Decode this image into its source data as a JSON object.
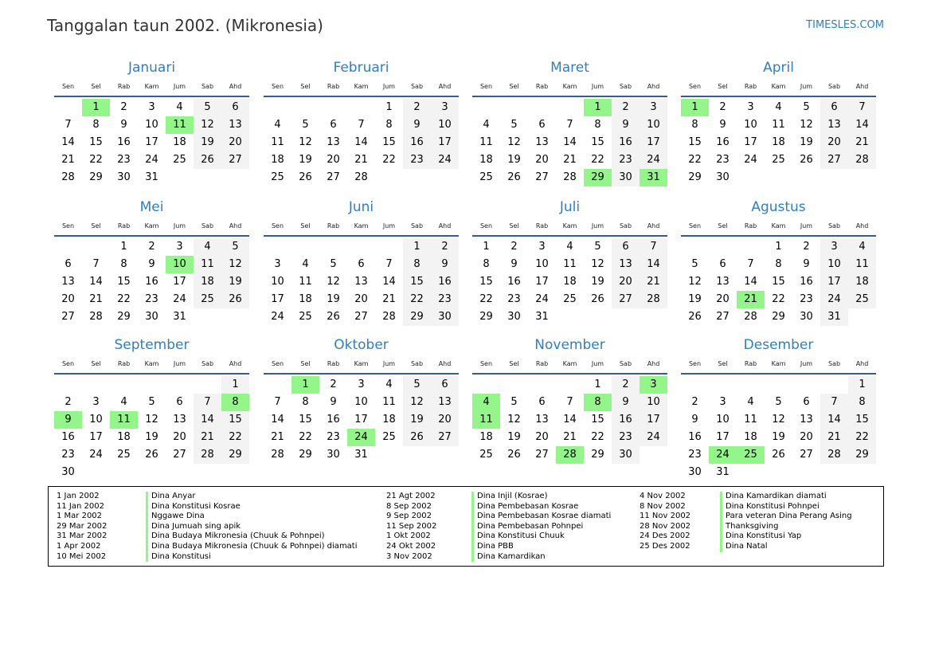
{
  "header": {
    "title": "Tanggalan taun 2002. (Mikronesia)",
    "brand": "TIMESLES.COM"
  },
  "weekdays": [
    "Sen",
    "Sel",
    "Rab",
    "Kam",
    "Jum",
    "Sab",
    "Ahd"
  ],
  "colors": {
    "accent": "#2f7fc1",
    "holiday": "#94f58b",
    "weekend": "#f3f3f3",
    "rule": "#3a5a8a"
  },
  "months": [
    {
      "name": "Januari",
      "first_weekday": 1,
      "days": 31,
      "holidays": [
        1,
        11
      ]
    },
    {
      "name": "Februari",
      "first_weekday": 4,
      "days": 28,
      "holidays": []
    },
    {
      "name": "Maret",
      "first_weekday": 4,
      "days": 31,
      "holidays": [
        1,
        29,
        31
      ]
    },
    {
      "name": "April",
      "first_weekday": 0,
      "days": 30,
      "holidays": [
        1
      ]
    },
    {
      "name": "Mei",
      "first_weekday": 2,
      "days": 31,
      "holidays": [
        10
      ]
    },
    {
      "name": "Juni",
      "first_weekday": 5,
      "days": 30,
      "holidays": []
    },
    {
      "name": "Juli",
      "first_weekday": 0,
      "days": 31,
      "holidays": []
    },
    {
      "name": "Agustus",
      "first_weekday": 3,
      "days": 31,
      "holidays": [
        21
      ]
    },
    {
      "name": "September",
      "first_weekday": 6,
      "days": 30,
      "holidays": [
        8,
        9,
        11
      ]
    },
    {
      "name": "Oktober",
      "first_weekday": 1,
      "days": 31,
      "holidays": [
        1,
        24
      ]
    },
    {
      "name": "November",
      "first_weekday": 4,
      "days": 30,
      "holidays": [
        3,
        4,
        8,
        11,
        28
      ]
    },
    {
      "name": "Desember",
      "first_weekday": 6,
      "days": 31,
      "holidays": [
        24,
        25
      ]
    }
  ],
  "holidays": [
    {
      "date": "1 Jan 2002",
      "name": "Dina Anyar"
    },
    {
      "date": "11 Jan 2002",
      "name": "Dina Konstitusi Kosrae"
    },
    {
      "date": "1 Mar 2002",
      "name": "Nggawe Dina"
    },
    {
      "date": "29 Mar 2002",
      "name": "Dina Jumuah sing apik"
    },
    {
      "date": "31 Mar 2002",
      "name": "Dina Budaya Mikronesia (Chuuk & Pohnpei)"
    },
    {
      "date": "1 Apr 2002",
      "name": "Dina Budaya Mikronesia (Chuuk & Pohnpei) diamati"
    },
    {
      "date": "10 Mei 2002",
      "name": "Dina Konstitusi"
    },
    {
      "date": "21 Agt 2002",
      "name": "Dina Injil (Kosrae)"
    },
    {
      "date": "8 Sep 2002",
      "name": "Dina Pembebasan Kosrae"
    },
    {
      "date": "9 Sep 2002",
      "name": "Dina Pembebasan Kosrae diamati"
    },
    {
      "date": "11 Sep 2002",
      "name": "Dina Pembebasan Pohnpei"
    },
    {
      "date": "1 Okt 2002",
      "name": "Dina Konstitusi Chuuk"
    },
    {
      "date": "24 Okt 2002",
      "name": "Dina PBB"
    },
    {
      "date": "3 Nov 2002",
      "name": "Dina Kamardikan"
    },
    {
      "date": "4 Nov 2002",
      "name": "Dina Kamardikan diamati"
    },
    {
      "date": "8 Nov 2002",
      "name": "Dina Konstitusi Pohnpei"
    },
    {
      "date": "11 Nov 2002",
      "name": "Para veteran Dina Perang Asing"
    },
    {
      "date": "28 Nov 2002",
      "name": "Thanksgiving"
    },
    {
      "date": "24 Des 2002",
      "name": "Dina Konstitusi Yap"
    },
    {
      "date": "25 Des 2002",
      "name": "Dina Natal"
    }
  ]
}
